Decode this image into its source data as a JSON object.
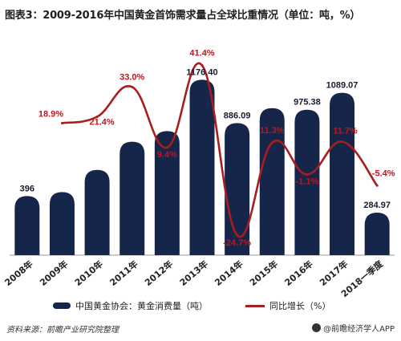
{
  "title": "图表3：2009-2016年中国黄金首饰需求量占全球比重情况（单位：吨，%）",
  "legend": {
    "bar_label": "中国黄金协会：黄金消费量（吨）",
    "line_label": "同比增长（%）"
  },
  "source": "资料来源：前瞻产业研究院整理",
  "brand": "@前瞻经济学人APP",
  "colors": {
    "bar": "#16264a",
    "line": "#a81d1d",
    "bar_label": "#1a1a2e",
    "line_label": "#c0161b"
  },
  "chart_data": {
    "type": "bar",
    "categories": [
      "2008年",
      "2009年",
      "2010年",
      "2011年",
      "2012年",
      "2013年",
      "2014年",
      "2015年",
      "2016年",
      "2017年",
      "2018一季度"
    ],
    "series": [
      {
        "name": "中国黄金协会：黄金消费量（吨）",
        "type": "bar",
        "values": [
          396,
          423,
          571.51,
          761.05,
          832.18,
          1176.4,
          886.09,
          985.9,
          975.38,
          1089.07,
          284.97
        ],
        "labels": [
          "396",
          "",
          "",
          "",
          "",
          "1176.40",
          "886.09",
          "",
          "975.38",
          "1089.07",
          "284.97"
        ]
      },
      {
        "name": "同比增长（%）",
        "type": "line",
        "values": [
          null,
          18.9,
          21.4,
          33.0,
          9.4,
          41.4,
          -24.7,
          11.3,
          -1.1,
          11.7,
          -5.4
        ],
        "labels": [
          "",
          "18.9%",
          "21.4%",
          "33.0%",
          "9.4%",
          "41.4%",
          "-24.7%",
          "11.3%",
          "-1.1%",
          "11.7%",
          "-5.4%"
        ]
      }
    ],
    "ylim_bar": [
      0,
      1200
    ],
    "ylim_line": [
      -30,
      45
    ]
  }
}
